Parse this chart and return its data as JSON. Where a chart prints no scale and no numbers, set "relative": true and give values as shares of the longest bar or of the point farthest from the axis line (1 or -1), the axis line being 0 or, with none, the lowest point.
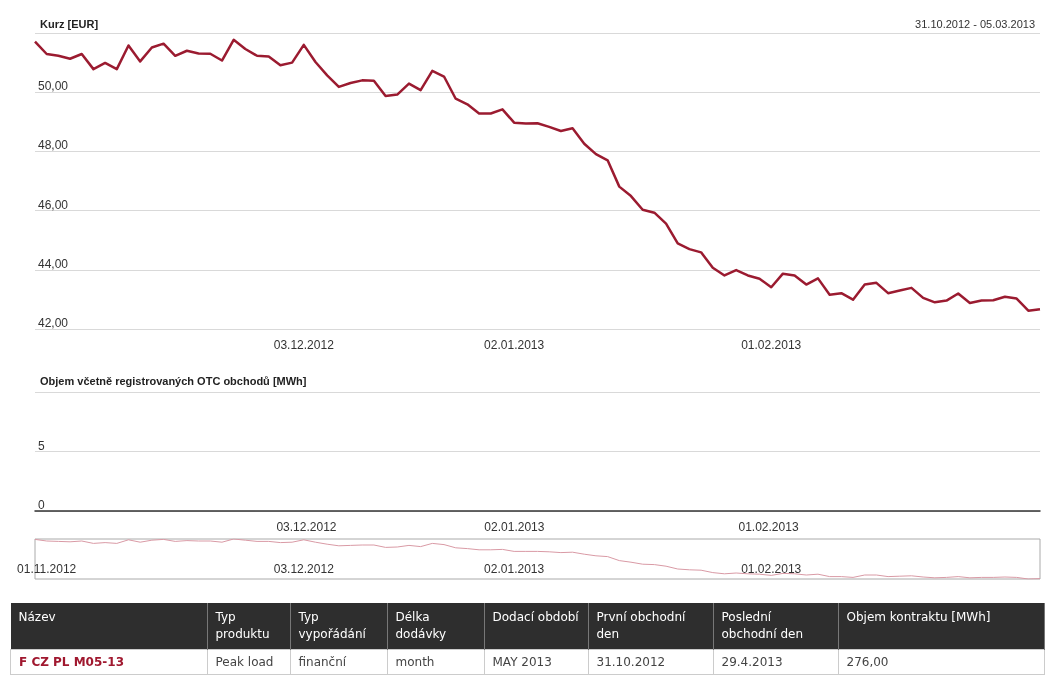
{
  "chart_data": [
    {
      "type": "line",
      "title": "Kurz [EUR]",
      "subtitle": "31.10.2012 - 05.03.2013",
      "color": "#9b1b30",
      "marker": "none",
      "grid": "y",
      "ylim": [
        42,
        52
      ],
      "yticks": [
        {
          "value": 42,
          "label": "42,00"
        },
        {
          "value": 44,
          "label": "44,00"
        },
        {
          "value": 46,
          "label": "46,00"
        },
        {
          "value": 48,
          "label": "48,00"
        },
        {
          "value": 50,
          "label": "50,00"
        },
        {
          "value": 52,
          "label": null
        }
      ],
      "categories": [
        null,
        null,
        null,
        null,
        null,
        null,
        null,
        null,
        null,
        null,
        null,
        null,
        null,
        null,
        null,
        null,
        null,
        null,
        null,
        null,
        null,
        null,
        null,
        "03.12.2012",
        null,
        null,
        null,
        null,
        null,
        null,
        null,
        null,
        null,
        null,
        null,
        null,
        null,
        null,
        null,
        null,
        null,
        "02.01.2013",
        null,
        null,
        null,
        null,
        null,
        null,
        null,
        null,
        null,
        null,
        null,
        null,
        null,
        null,
        null,
        null,
        null,
        null,
        null,
        null,
        null,
        "01.02.2013",
        null,
        null,
        null,
        null,
        null,
        null,
        null,
        null,
        null,
        null,
        null,
        null,
        null,
        null,
        null,
        null,
        null,
        null,
        null,
        null,
        null,
        null,
        null
      ],
      "values": [
        51.71,
        51.29,
        51.23,
        51.13,
        51.29,
        50.78,
        50.99,
        50.78,
        51.58,
        51.04,
        51.51,
        51.64,
        51.23,
        51.4,
        51.31,
        51.3,
        51.07,
        51.77,
        51.46,
        51.23,
        51.21,
        50.91,
        51.0,
        51.6,
        51.02,
        50.57,
        50.18,
        50.31,
        50.4,
        50.39,
        49.87,
        49.92,
        50.29,
        50.07,
        50.72,
        50.53,
        49.78,
        49.59,
        49.28,
        49.28,
        49.42,
        48.97,
        48.94,
        48.95,
        48.83,
        48.69,
        48.78,
        48.26,
        47.91,
        47.7,
        46.81,
        46.49,
        46.03,
        45.93,
        45.56,
        44.89,
        44.7,
        44.59,
        44.07,
        43.81,
        43.99,
        43.81,
        43.7,
        43.41,
        43.87,
        43.81,
        43.5,
        43.71,
        43.16,
        43.21,
        42.99,
        43.5,
        43.56,
        43.21,
        43.3,
        43.39,
        43.05,
        42.9,
        42.96,
        43.2,
        42.88,
        42.96,
        42.97,
        43.09,
        43.03,
        42.62,
        42.67
      ]
    },
    {
      "type": "bar",
      "title": "Objem včetně registrovaných OTC obchodů [MWh]",
      "grid": "y",
      "ylim": [
        0,
        10
      ],
      "yticks": [
        0,
        5,
        {
          "value": 10,
          "label": null
        }
      ],
      "categories": [
        null,
        null,
        null,
        null,
        null,
        null,
        null,
        null,
        null,
        null,
        null,
        null,
        null,
        null,
        null,
        null,
        null,
        null,
        null,
        null,
        null,
        null,
        null,
        "03.12.2012",
        null,
        null,
        null,
        null,
        null,
        null,
        null,
        null,
        null,
        null,
        null,
        null,
        null,
        null,
        null,
        null,
        null,
        "02.01.2013",
        null,
        null,
        null,
        null,
        null,
        null,
        null,
        null,
        null,
        null,
        null,
        null,
        null,
        null,
        null,
        null,
        null,
        null,
        null,
        null,
        null,
        "01.02.2013",
        null,
        null,
        null,
        null,
        null,
        null,
        null,
        null,
        null,
        null,
        null,
        null,
        null,
        null,
        null,
        null,
        null,
        null,
        null,
        null,
        null,
        null,
        null
      ],
      "values": [
        null,
        null,
        null,
        null,
        null,
        null,
        null,
        null,
        null,
        null,
        null,
        null,
        null,
        null,
        null,
        null,
        null,
        null,
        null,
        null,
        null,
        null,
        null,
        null,
        null,
        null,
        null,
        null,
        null,
        null,
        null,
        null,
        null,
        null,
        null,
        null,
        null,
        null,
        null,
        null,
        null,
        null,
        null,
        null,
        null,
        null,
        null,
        null,
        null,
        null,
        null,
        null,
        null,
        null,
        null,
        null,
        null,
        null,
        null,
        null,
        null,
        null,
        null,
        null,
        null,
        null,
        null,
        null,
        null,
        null,
        null,
        null,
        null,
        null,
        null,
        null,
        null,
        null,
        null,
        null,
        null,
        null,
        null,
        null,
        null,
        null,
        null
      ]
    },
    {
      "type": "line",
      "relative": true,
      "color": "#d99aa5",
      "marker": "none",
      "categories": [
        null,
        "01.11.2012",
        null,
        null,
        null,
        null,
        null,
        null,
        null,
        null,
        null,
        null,
        null,
        null,
        null,
        null,
        null,
        null,
        null,
        null,
        null,
        null,
        null,
        "03.12.2012",
        null,
        null,
        null,
        null,
        null,
        null,
        null,
        null,
        null,
        null,
        null,
        null,
        null,
        null,
        null,
        null,
        null,
        "02.01.2013",
        null,
        null,
        null,
        null,
        null,
        null,
        null,
        null,
        null,
        null,
        null,
        null,
        null,
        null,
        null,
        null,
        null,
        null,
        null,
        null,
        null,
        "01.02.2013",
        null,
        null,
        null,
        null,
        null,
        null,
        null,
        null,
        null,
        null,
        null,
        null,
        null,
        null,
        null,
        null,
        null,
        null,
        null,
        null,
        null,
        null,
        null
      ],
      "values": [
        0.99,
        0.95,
        0.94,
        0.93,
        0.95,
        0.89,
        0.91,
        0.89,
        0.98,
        0.92,
        0.97,
        0.99,
        0.94,
        0.96,
        0.95,
        0.95,
        0.92,
        1,
        0.97,
        0.94,
        0.94,
        0.91,
        0.92,
        0.98,
        0.92,
        0.87,
        0.83,
        0.84,
        0.85,
        0.85,
        0.79,
        0.8,
        0.84,
        0.81,
        0.89,
        0.86,
        0.78,
        0.76,
        0.73,
        0.73,
        0.74,
        0.69,
        0.69,
        0.69,
        0.68,
        0.66,
        0.67,
        0.62,
        0.58,
        0.56,
        0.46,
        0.42,
        0.37,
        0.36,
        0.32,
        0.25,
        0.23,
        0.22,
        0.16,
        0.13,
        0.15,
        0.13,
        0.12,
        0.09,
        0.14,
        0.13,
        0.1,
        0.12,
        0.06,
        0.06,
        0.04,
        0.1,
        0.1,
        0.06,
        0.07,
        0.08,
        0.05,
        0.03,
        0.04,
        0.06,
        0.03,
        0.04,
        0.04,
        0.05,
        0.04,
        0,
        0.01
      ]
    },
    {
      "type": "other",
      "categories": [
        "Název",
        "Typ produktu",
        "Typ vypořádání",
        "Délka dodávky",
        "Dodací období",
        "První obchodní den",
        "Poslední obchodní den",
        "Objem kontraktu [MWh]"
      ],
      "annotations": [
        "F CZ PL M05-13",
        "Peak load",
        "finanční",
        "month",
        "MAY 2013",
        "31.10.2012",
        "29.4.2013",
        "276,00"
      ]
    }
  ]
}
